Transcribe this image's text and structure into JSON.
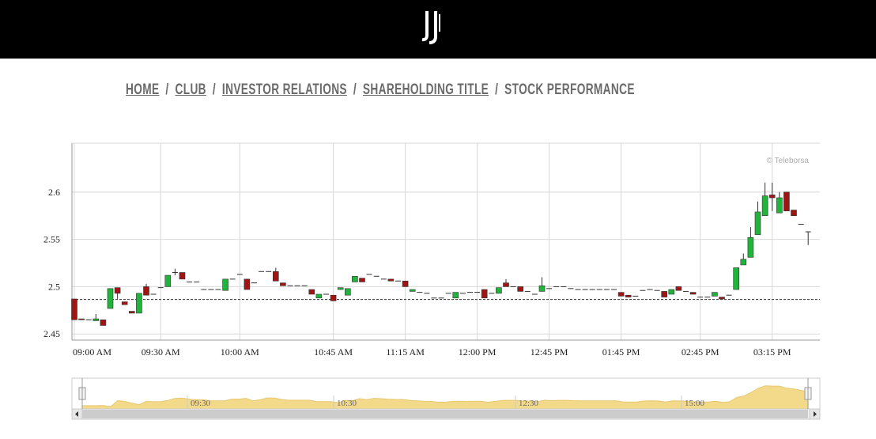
{
  "breadcrumb": [
    "HOME",
    "CLUB",
    "INVESTOR RELATIONS",
    "SHAREHOLDING TITLE",
    "STOCK PERFORMANCE"
  ],
  "separator": "/",
  "chart_data": {
    "type": "candlestick",
    "credits": "© Teleborsa",
    "up_color": "#22b33c",
    "down_color": "#a01414",
    "grid": true,
    "ylim": [
      2.4435,
      2.6517
    ],
    "yticks": [
      2.45,
      2.5,
      2.55,
      2.6
    ],
    "previous_close": 2.4865,
    "categories": [
      "09:00 AM",
      null,
      null,
      null,
      null,
      null,
      null,
      null,
      null,
      null,
      null,
      null,
      "09:30 AM",
      null,
      null,
      null,
      null,
      null,
      null,
      null,
      null,
      null,
      null,
      "10:00 AM",
      null,
      null,
      null,
      null,
      null,
      null,
      null,
      null,
      null,
      null,
      null,
      null,
      "10:45 AM",
      null,
      null,
      null,
      null,
      null,
      null,
      null,
      null,
      null,
      "11:15 AM",
      null,
      null,
      null,
      null,
      null,
      null,
      null,
      null,
      null,
      "12:00 PM",
      null,
      null,
      null,
      null,
      null,
      null,
      null,
      null,
      null,
      "12:45 PM",
      null,
      null,
      null,
      null,
      null,
      null,
      null,
      null,
      null,
      "01:45 PM",
      null,
      null,
      null,
      null,
      null,
      null,
      null,
      null,
      null,
      null,
      "02:45 PM",
      null,
      null,
      null,
      null,
      null,
      null,
      null,
      null,
      null,
      "03:15 PM",
      null,
      null,
      null,
      null,
      null
    ],
    "open": [
      2.487,
      2.466,
      2.465,
      2.464,
      2.465,
      2.477,
      2.499,
      2.484,
      2.474,
      2.472,
      2.5,
      2.492,
      2.499,
      2.5,
      2.515,
      2.515,
      2.505,
      2.505,
      2.497,
      2.497,
      2.497,
      2.496,
      2.508,
      2.513,
      2.508,
      2.504,
      2.516,
      2.516,
      2.516,
      2.504,
      2.501,
      2.501,
      2.501,
      2.497,
      2.488,
      2.492,
      2.491,
      2.497,
      2.491,
      2.505,
      2.509,
      2.513,
      2.511,
      2.508,
      2.508,
      2.506,
      2.506,
      2.495,
      2.494,
      2.493,
      2.488,
      2.488,
      2.493,
      2.488,
      2.493,
      2.494,
      2.494,
      2.497,
      2.493,
      2.493,
      2.504,
      2.5,
      2.5,
      2.495,
      2.492,
      2.495,
      2.498,
      2.5,
      2.5,
      2.498,
      2.497,
      2.497,
      2.497,
      2.497,
      2.497,
      2.497,
      2.494,
      2.491,
      2.49,
      2.496,
      2.497,
      2.496,
      2.495,
      2.492,
      2.5,
      2.495,
      2.494,
      2.489,
      2.489,
      2.49,
      2.489,
      2.491,
      2.497,
      2.523,
      2.531,
      2.555,
      2.575,
      2.597,
      2.578,
      2.6,
      2.581,
      2.566,
      2.558
    ],
    "high": [
      2.487,
      2.466,
      2.465,
      2.471,
      2.465,
      2.498,
      2.499,
      2.484,
      2.474,
      2.493,
      2.503,
      2.492,
      2.499,
      2.512,
      2.519,
      2.515,
      2.505,
      2.505,
      2.497,
      2.497,
      2.497,
      2.508,
      2.508,
      2.513,
      2.508,
      2.504,
      2.516,
      2.516,
      2.52,
      2.504,
      2.501,
      2.501,
      2.501,
      2.497,
      2.492,
      2.492,
      2.491,
      2.499,
      2.498,
      2.511,
      2.509,
      2.513,
      2.511,
      2.508,
      2.508,
      2.506,
      2.506,
      2.497,
      2.494,
      2.493,
      2.488,
      2.488,
      2.493,
      2.494,
      2.493,
      2.494,
      2.494,
      2.497,
      2.493,
      2.499,
      2.508,
      2.5,
      2.5,
      2.495,
      2.492,
      2.51,
      2.498,
      2.5,
      2.5,
      2.498,
      2.497,
      2.497,
      2.497,
      2.497,
      2.497,
      2.497,
      2.494,
      2.491,
      2.49,
      2.496,
      2.497,
      2.496,
      2.495,
      2.497,
      2.5,
      2.495,
      2.494,
      2.489,
      2.489,
      2.494,
      2.489,
      2.491,
      2.52,
      2.535,
      2.563,
      2.59,
      2.61,
      2.61,
      2.6,
      2.6,
      2.581,
      2.566,
      2.558
    ],
    "low": [
      2.465,
      2.465,
      2.465,
      2.464,
      2.459,
      2.477,
      2.487,
      2.481,
      2.472,
      2.472,
      2.491,
      2.492,
      2.499,
      2.5,
      2.512,
      2.508,
      2.505,
      2.505,
      2.497,
      2.497,
      2.497,
      2.496,
      2.508,
      2.513,
      2.497,
      2.504,
      2.516,
      2.516,
      2.506,
      2.501,
      2.501,
      2.501,
      2.501,
      2.492,
      2.488,
      2.492,
      2.485,
      2.497,
      2.491,
      2.505,
      2.505,
      2.513,
      2.511,
      2.508,
      2.506,
      2.506,
      2.5,
      2.495,
      2.494,
      2.493,
      2.488,
      2.488,
      2.493,
      2.488,
      2.493,
      2.494,
      2.494,
      2.488,
      2.493,
      2.493,
      2.5,
      2.5,
      2.495,
      2.495,
      2.492,
      2.495,
      2.498,
      2.5,
      2.5,
      2.498,
      2.497,
      2.497,
      2.497,
      2.497,
      2.497,
      2.497,
      2.49,
      2.489,
      2.49,
      2.496,
      2.497,
      2.496,
      2.489,
      2.492,
      2.496,
      2.495,
      2.492,
      2.489,
      2.489,
      2.49,
      2.487,
      2.491,
      2.497,
      2.523,
      2.531,
      2.555,
      2.575,
      2.58,
      2.578,
      2.58,
      2.575,
      2.566,
      2.544
    ],
    "close": [
      2.465,
      2.465,
      2.465,
      2.466,
      2.459,
      2.498,
      2.493,
      2.481,
      2.472,
      2.493,
      2.491,
      2.492,
      2.499,
      2.512,
      2.515,
      2.508,
      2.505,
      2.505,
      2.497,
      2.497,
      2.497,
      2.508,
      2.508,
      2.513,
      2.497,
      2.504,
      2.516,
      2.516,
      2.506,
      2.501,
      2.501,
      2.501,
      2.501,
      2.492,
      2.492,
      2.492,
      2.485,
      2.499,
      2.498,
      2.511,
      2.505,
      2.513,
      2.511,
      2.508,
      2.506,
      2.506,
      2.5,
      2.497,
      2.494,
      2.493,
      2.488,
      2.488,
      2.493,
      2.494,
      2.493,
      2.494,
      2.494,
      2.488,
      2.493,
      2.499,
      2.5,
      2.5,
      2.495,
      2.495,
      2.492,
      2.501,
      2.498,
      2.5,
      2.5,
      2.498,
      2.497,
      2.497,
      2.497,
      2.497,
      2.497,
      2.497,
      2.49,
      2.489,
      2.49,
      2.496,
      2.497,
      2.496,
      2.489,
      2.497,
      2.496,
      2.495,
      2.492,
      2.489,
      2.489,
      2.494,
      2.487,
      2.491,
      2.52,
      2.529,
      2.552,
      2.579,
      2.596,
      2.594,
      2.594,
      2.58,
      2.575,
      2.566,
      2.558
    ],
    "navigator": {
      "color": "#f3d98a",
      "labels": [
        "09:30",
        "10:30",
        "12:30",
        "15:00"
      ]
    }
  }
}
